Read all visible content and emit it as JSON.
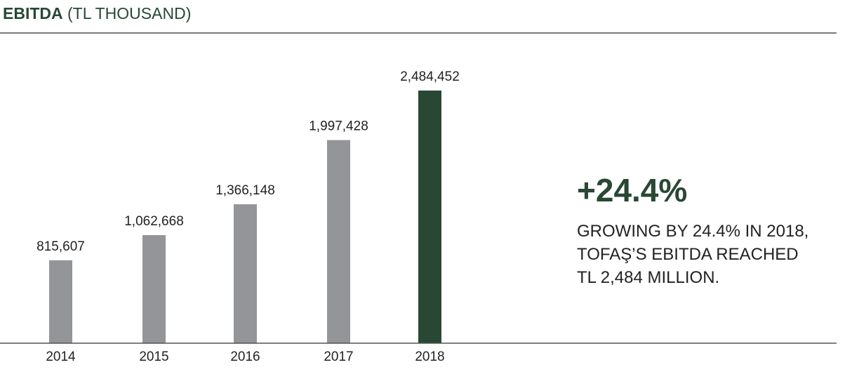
{
  "chart_data": {
    "type": "bar",
    "title": "EBITDA",
    "subtitle": "(TL THOUSAND)",
    "categories": [
      "2014",
      "2015",
      "2016",
      "2017",
      "2018"
    ],
    "values": [
      815607,
      1062668,
      1366148,
      1997428,
      2484452
    ],
    "value_labels": [
      "815,607",
      "1,062,668",
      "1,366,148",
      "1,997,428",
      "2,484,452"
    ],
    "highlight_index": 4,
    "colors": {
      "default": "#939598",
      "highlight": "#284834"
    },
    "ylim": [
      0,
      2484452
    ]
  },
  "callout": {
    "value": "+24.4%",
    "lines": [
      "GROWING BY 24.4% IN 2018,",
      "TOFAŞ’S EBITDA REACHED",
      "TL 2,484 MILLION."
    ]
  }
}
